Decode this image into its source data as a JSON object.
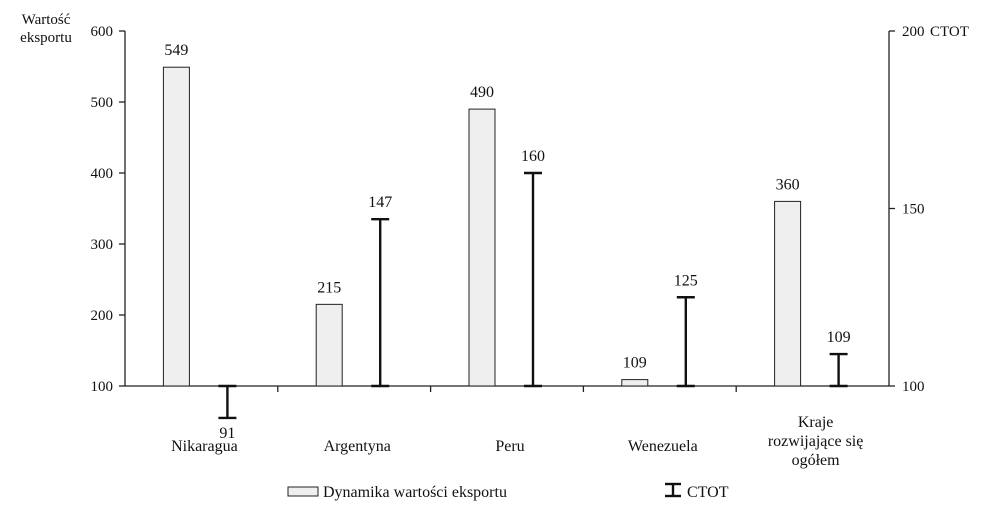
{
  "chart_data": {
    "type": "bar",
    "categories": [
      "Nikaragua",
      "Argentyna",
      "Peru",
      "Wenezuela",
      [
        "Kraje",
        "rozwijające się",
        "ogółem"
      ]
    ],
    "left_axis": {
      "label": [
        "Wartość",
        "eksportu"
      ],
      "ylim": [
        100,
        600
      ],
      "ticks": [
        100,
        200,
        300,
        400,
        500,
        600
      ]
    },
    "right_axis": {
      "label": "CTOT",
      "ylim": [
        100,
        200
      ],
      "ticks": [
        100,
        150,
        200
      ]
    },
    "series": [
      {
        "name": "Dynamika wartości eksportu",
        "axis": "left",
        "style": "bar",
        "values": [
          549,
          215,
          490,
          109,
          360
        ],
        "labels": [
          "549",
          "215",
          "490",
          "109",
          "360"
        ],
        "color": "#efefef"
      },
      {
        "name": "CTOT",
        "axis": "right",
        "style": "I-beam",
        "values": [
          91,
          147,
          160,
          125,
          109
        ],
        "labels": [
          "91",
          "147",
          "160",
          "125",
          "109"
        ],
        "color": "#111111"
      }
    ],
    "legend": {
      "position": "bottom",
      "items": [
        "Dynamika wartości eksportu",
        "CTOT"
      ]
    }
  }
}
